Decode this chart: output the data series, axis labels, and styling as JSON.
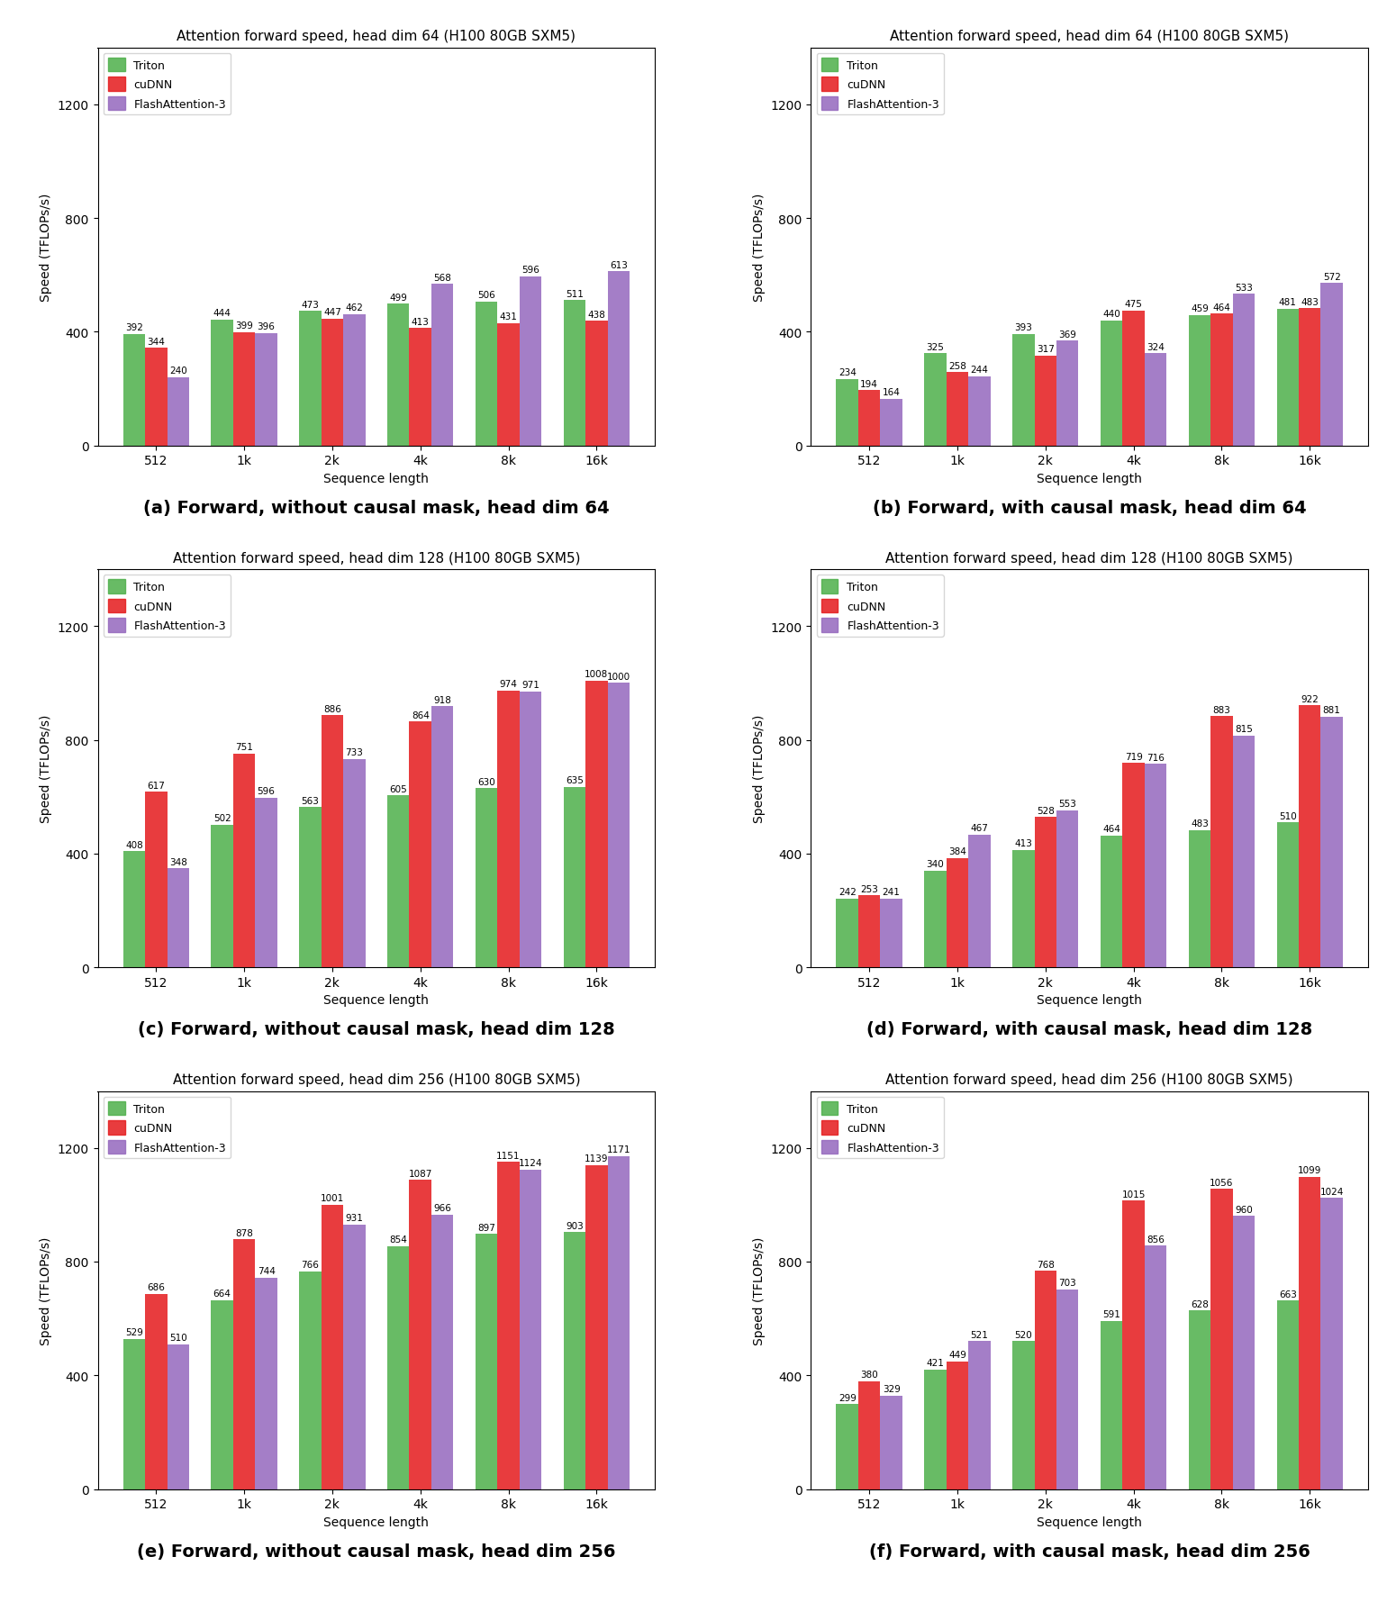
{
  "charts": [
    {
      "title": "Attention forward speed, head dim 64 (H100 80GB SXM5)",
      "caption": "(a) Forward, without causal mask, head dim 64",
      "seq_lengths": [
        "512",
        "1k",
        "2k",
        "4k",
        "8k",
        "16k"
      ],
      "triton": [
        392,
        444,
        473,
        499,
        506,
        511
      ],
      "cudnn": [
        344,
        399,
        447,
        413,
        431,
        438
      ],
      "flashattn3": [
        240,
        396,
        462,
        568,
        596,
        613
      ]
    },
    {
      "title": "Attention forward speed, head dim 64 (H100 80GB SXM5)",
      "caption": "(b) Forward, with causal mask, head dim 64",
      "seq_lengths": [
        "512",
        "1k",
        "2k",
        "4k",
        "8k",
        "16k"
      ],
      "triton": [
        234,
        325,
        393,
        440,
        459,
        481
      ],
      "cudnn": [
        194,
        258,
        317,
        475,
        464,
        483
      ],
      "flashattn3": [
        164,
        244,
        369,
        324,
        533,
        572
      ]
    },
    {
      "title": "Attention forward speed, head dim 128 (H100 80GB SXM5)",
      "caption": "(c) Forward, without causal mask, head dim 128",
      "seq_lengths": [
        "512",
        "1k",
        "2k",
        "4k",
        "8k",
        "16k"
      ],
      "triton": [
        408,
        502,
        563,
        605,
        630,
        635
      ],
      "cudnn": [
        617,
        751,
        886,
        864,
        974,
        1008
      ],
      "flashattn3": [
        348,
        596,
        733,
        918,
        971,
        1000
      ]
    },
    {
      "title": "Attention forward speed, head dim 128 (H100 80GB SXM5)",
      "caption": "(d) Forward, with causal mask, head dim 128",
      "seq_lengths": [
        "512",
        "1k",
        "2k",
        "4k",
        "8k",
        "16k"
      ],
      "triton": [
        242,
        340,
        413,
        464,
        483,
        510
      ],
      "cudnn": [
        253,
        384,
        528,
        719,
        883,
        922
      ],
      "flashattn3": [
        241,
        467,
        553,
        716,
        815,
        881
      ]
    },
    {
      "title": "Attention forward speed, head dim 256 (H100 80GB SXM5)",
      "caption": "(e) Forward, without causal mask, head dim 256",
      "seq_lengths": [
        "512",
        "1k",
        "2k",
        "4k",
        "8k",
        "16k"
      ],
      "triton": [
        529,
        664,
        766,
        854,
        897,
        903
      ],
      "cudnn": [
        686,
        878,
        1001,
        1087,
        1151,
        1139
      ],
      "flashattn3": [
        510,
        744,
        931,
        966,
        1124,
        1171
      ]
    },
    {
      "title": "Attention forward speed, head dim 256 (H100 80GB SXM5)",
      "caption": "(f) Forward, with causal mask, head dim 256",
      "seq_lengths": [
        "512",
        "1k",
        "2k",
        "4k",
        "8k",
        "16k"
      ],
      "triton": [
        299,
        421,
        520,
        591,
        628,
        663
      ],
      "cudnn": [
        380,
        449,
        768,
        1015,
        1056,
        1099
      ],
      "flashattn3": [
        329,
        521,
        703,
        856,
        960,
        1024
      ]
    }
  ],
  "colors": {
    "triton": "#4daf4a",
    "cudnn": "#e41a1c",
    "flashattn3": "#9467bd"
  },
  "legend_labels": [
    "Triton",
    "cuDNN",
    "FlashAttention-3"
  ],
  "ylabel": "Speed (TFLOPs/s)",
  "xlabel": "Sequence length",
  "ylim": [
    0,
    1400
  ],
  "yticks": [
    0,
    400,
    800,
    1200
  ],
  "bar_width": 0.25,
  "title_fontsize": 11,
  "caption_fontsize": 14,
  "tick_fontsize": 10,
  "label_fontsize": 10,
  "annotation_fontsize": 7.5
}
